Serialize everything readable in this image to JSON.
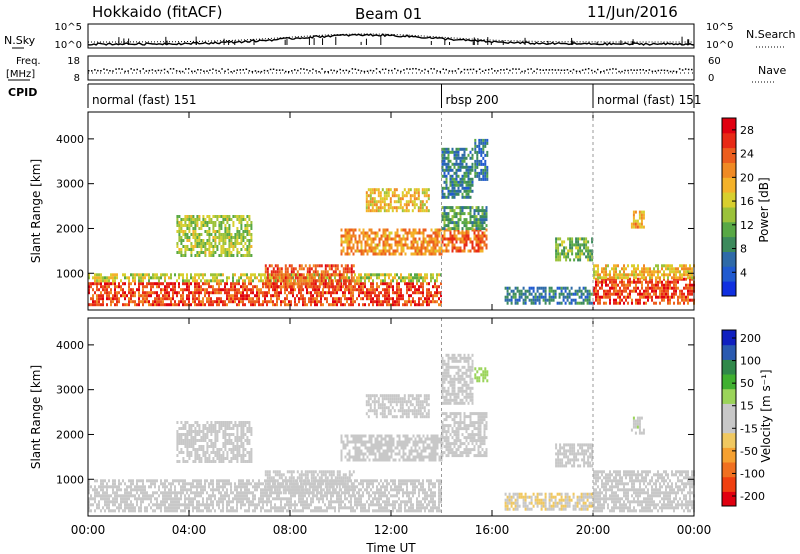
{
  "header": {
    "station": "Hokkaido (fitACF)",
    "beam": "Beam 01",
    "date": "11/Jun/2016"
  },
  "top_panels": {
    "nsky_label": "N.Sky",
    "nsearch_label": "N.Search",
    "nsky_ticks": [
      "10^5",
      "10^0"
    ],
    "nsearch_ticks": [
      "10^5",
      "10^0"
    ],
    "freq_label_1": "Freq.",
    "freq_label_2": "[MHz]",
    "freq_ticks": [
      "18",
      "8"
    ],
    "nave_label": "Nave",
    "nave_ticks": [
      "60",
      "0"
    ],
    "cpid_label": "CPID",
    "cpid_segments": [
      {
        "label": "normal (fast) 151",
        "start_hour": 0,
        "end_hour": 14
      },
      {
        "label": "rbsp 200",
        "start_hour": 14,
        "end_hour": 20
      },
      {
        "label": "normal (fast) 151",
        "start_hour": 20,
        "end_hour": 24
      }
    ]
  },
  "chart_data": [
    {
      "type": "heatmap",
      "name": "power",
      "xlabel": "Time UT",
      "ylabel": "Slant Range [km]",
      "xlim": [
        0,
        24
      ],
      "ylim": [
        180,
        4600
      ],
      "x_ticks": [
        "00:00",
        "04:00",
        "08:00",
        "12:00",
        "16:00",
        "20:00",
        "00:00"
      ],
      "y_ticks": [
        1000,
        2000,
        3000,
        4000
      ],
      "colorbar": {
        "label": "Power [dB]",
        "ticks": [
          4,
          8,
          12,
          16,
          20,
          24,
          28
        ],
        "range": [
          0,
          30
        ],
        "colors": [
          "#1030e0",
          "#205ad0",
          "#2e6aa8",
          "#3c8a5c",
          "#58a845",
          "#9bc23a",
          "#d8cf2e",
          "#f4b22a",
          "#f08a24",
          "#ec5e1e",
          "#e82a16",
          "#e00010"
        ]
      },
      "echo_regions": [
        {
          "t0": 0.0,
          "t1": 14.0,
          "r0": 300,
          "r1": 800,
          "p": 25
        },
        {
          "t0": 0.0,
          "t1": 14.0,
          "r0": 800,
          "r1": 1000,
          "p": 15
        },
        {
          "t0": 3.5,
          "t1": 6.5,
          "r0": 1400,
          "r1": 2300,
          "p": 14
        },
        {
          "t0": 7.0,
          "t1": 10.5,
          "r0": 700,
          "r1": 1200,
          "p": 24
        },
        {
          "t0": 10.0,
          "t1": 14.0,
          "r0": 1400,
          "r1": 2000,
          "p": 21
        },
        {
          "t0": 11.0,
          "t1": 13.5,
          "r0": 2400,
          "r1": 2900,
          "p": 18
        },
        {
          "t0": 14.0,
          "t1": 15.8,
          "r0": 1500,
          "r1": 2000,
          "p": 23
        },
        {
          "t0": 14.0,
          "t1": 15.8,
          "r0": 2000,
          "r1": 2500,
          "p": 10
        },
        {
          "t0": 14.0,
          "t1": 15.2,
          "r0": 2700,
          "r1": 3800,
          "p": 8
        },
        {
          "t0": 15.3,
          "t1": 15.8,
          "r0": 3100,
          "r1": 4000,
          "p": 7
        },
        {
          "t0": 16.5,
          "t1": 20.0,
          "r0": 300,
          "r1": 700,
          "p": 7
        },
        {
          "t0": 18.5,
          "t1": 20.0,
          "r0": 1300,
          "r1": 1800,
          "p": 12
        },
        {
          "t0": 20.0,
          "t1": 24.0,
          "r0": 300,
          "r1": 900,
          "p": 25
        },
        {
          "t0": 20.0,
          "t1": 24.0,
          "r0": 900,
          "r1": 1200,
          "p": 18
        },
        {
          "t0": 21.5,
          "t1": 22.0,
          "r0": 2000,
          "r1": 2400,
          "p": 19
        }
      ]
    },
    {
      "type": "heatmap",
      "name": "velocity",
      "xlabel": "Time UT",
      "ylabel": "Slant Range [km]",
      "xlim": [
        0,
        24
      ],
      "ylim": [
        180,
        4600
      ],
      "x_ticks": [
        "00:00",
        "04:00",
        "08:00",
        "12:00",
        "16:00",
        "20:00",
        "00:00"
      ],
      "y_ticks": [
        1000,
        2000,
        3000,
        4000
      ],
      "colorbar": {
        "label": "Velocity [m s⁻¹]",
        "ticks": [
          200,
          100,
          50,
          15,
          -15,
          -50,
          -100,
          -200
        ],
        "range": [
          -250,
          250
        ],
        "colors": [
          "#e00010",
          "#f04010",
          "#f07020",
          "#f5a030",
          "#f0c860",
          "#c8c8c8",
          "#c8c8c8",
          "#9bd45a",
          "#40b030",
          "#30884a",
          "#2a5ab0",
          "#1020c0"
        ]
      },
      "echo_regions": [
        {
          "t0": 0.0,
          "t1": 14.0,
          "r0": 300,
          "r1": 1000,
          "v": 0
        },
        {
          "t0": 3.5,
          "t1": 6.5,
          "r0": 1400,
          "r1": 2300,
          "v": 0
        },
        {
          "t0": 7.0,
          "t1": 10.5,
          "r0": 700,
          "r1": 1200,
          "v": 0
        },
        {
          "t0": 10.0,
          "t1": 14.0,
          "r0": 1400,
          "r1": 2000,
          "v": -20
        },
        {
          "t0": 11.0,
          "t1": 13.5,
          "r0": 2400,
          "r1": 2900,
          "v": 0
        },
        {
          "t0": 14.0,
          "t1": 15.8,
          "r0": 1500,
          "r1": 2500,
          "v": 0
        },
        {
          "t0": 14.0,
          "t1": 15.2,
          "r0": 2700,
          "r1": 3800,
          "v": 0
        },
        {
          "t0": 15.3,
          "t1": 15.8,
          "r0": 3200,
          "r1": 3500,
          "v": 60
        },
        {
          "t0": 16.5,
          "t1": 20.0,
          "r0": 300,
          "r1": 700,
          "v": -40
        },
        {
          "t0": 18.5,
          "t1": 20.0,
          "r0": 1300,
          "r1": 1800,
          "v": 0
        },
        {
          "t0": 20.0,
          "t1": 24.0,
          "r0": 300,
          "r1": 1200,
          "v": 0
        },
        {
          "t0": 21.5,
          "t1": 22.0,
          "r0": 2000,
          "r1": 2400,
          "v": 30
        }
      ]
    }
  ]
}
